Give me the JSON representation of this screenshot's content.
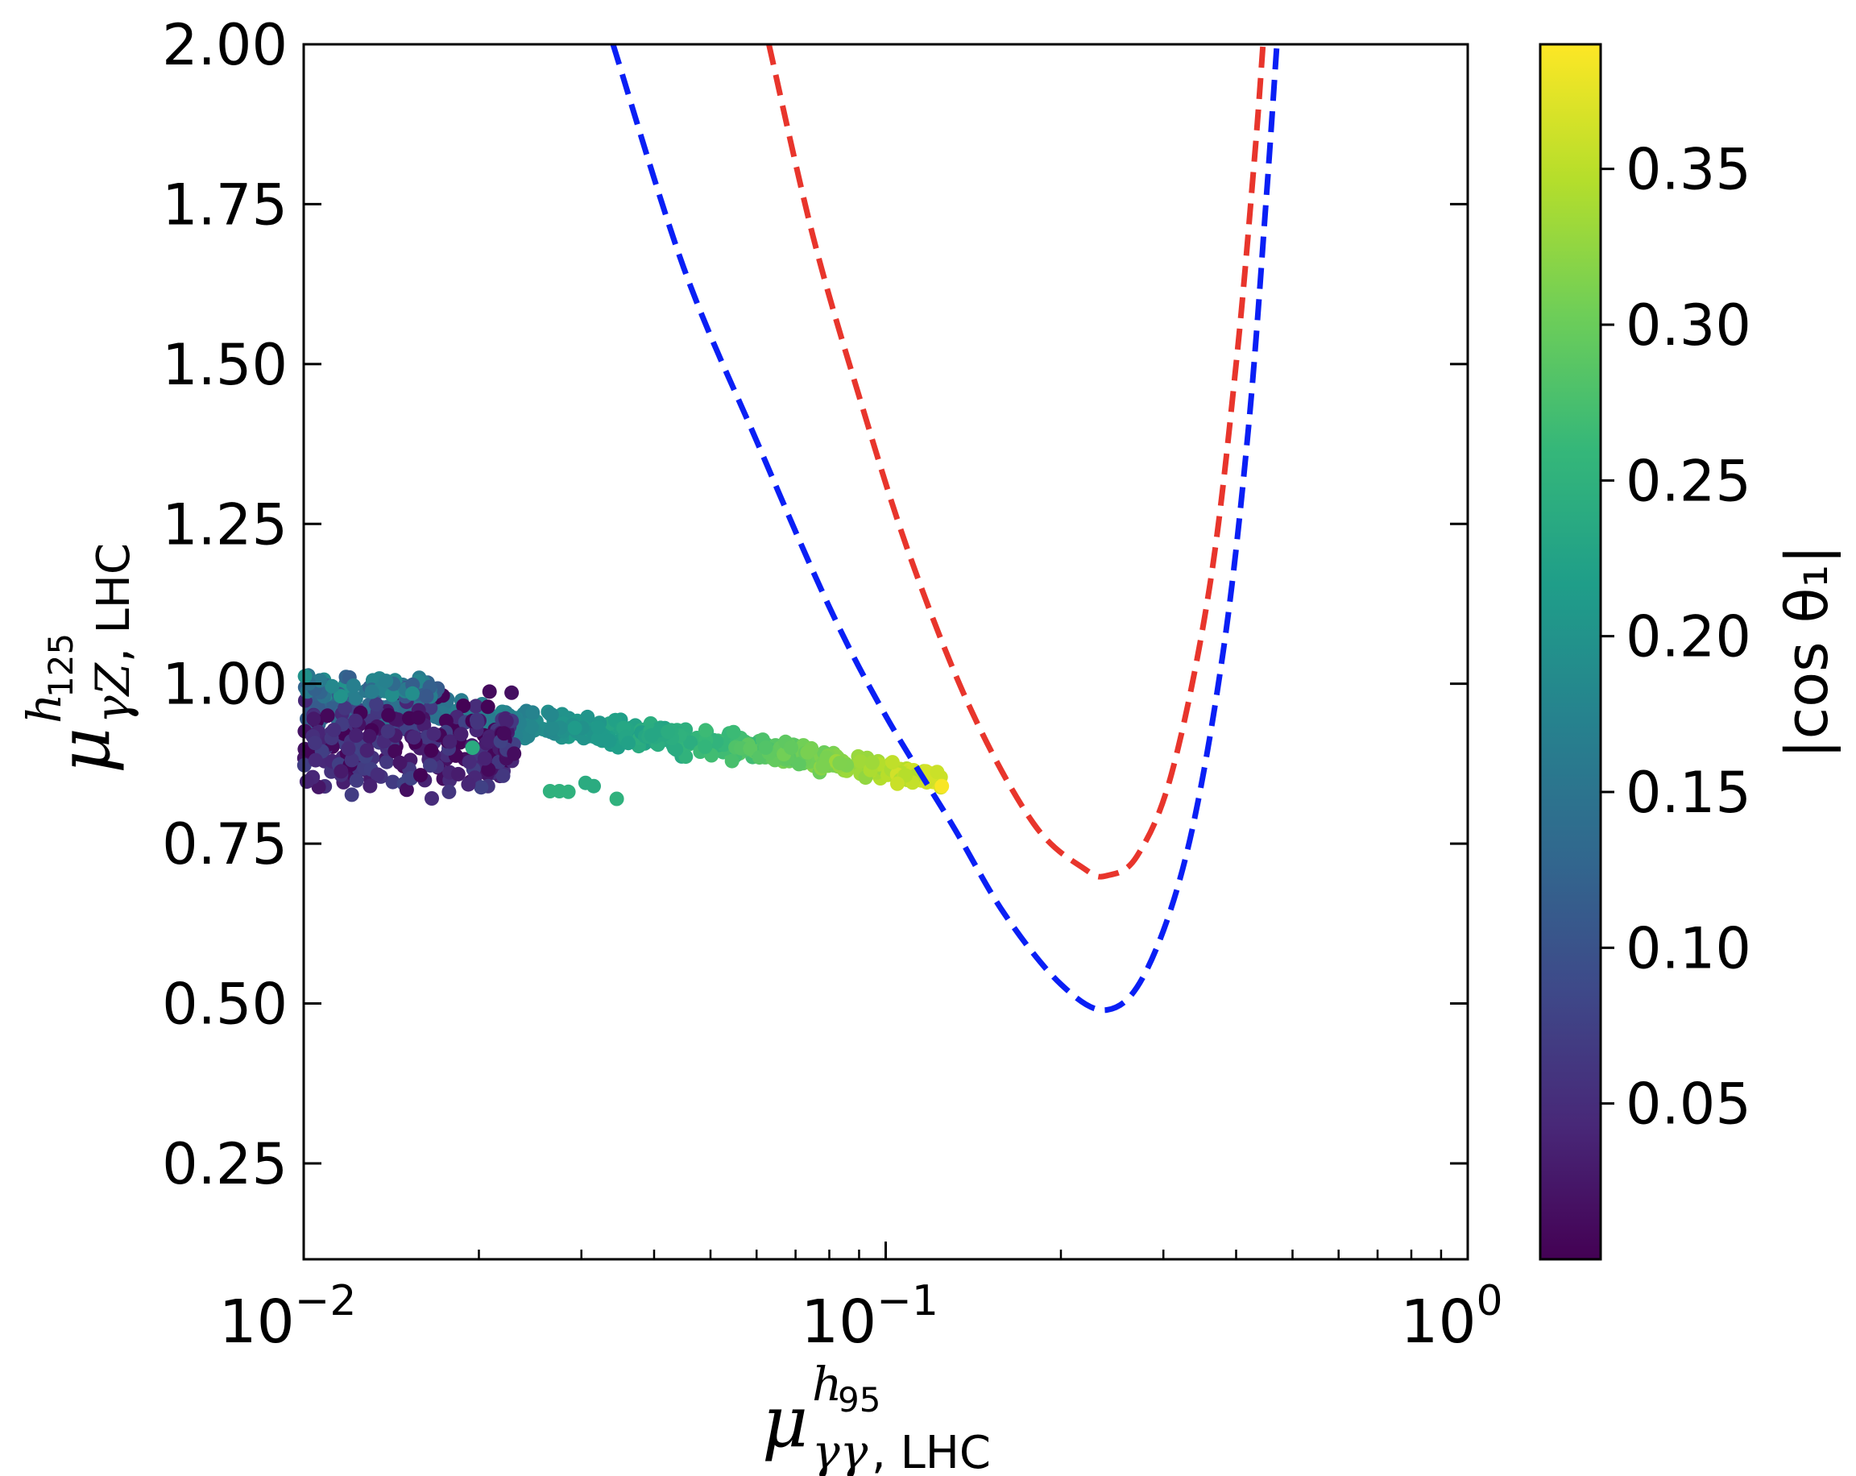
{
  "chart_data": {
    "type": "scatter",
    "x_scale": "log",
    "xlim": [
      0.01,
      1.0
    ],
    "ylim": [
      0.1,
      2.0
    ],
    "x_ticks": [
      {
        "base": "10",
        "exp": "−2",
        "value": 0.01
      },
      {
        "base": "10",
        "exp": "−1",
        "value": 0.1
      },
      {
        "base": "10",
        "exp": "0",
        "value": 1.0
      }
    ],
    "y_ticks": [
      "0.25",
      "0.50",
      "0.75",
      "1.00",
      "1.25",
      "1.50",
      "1.75",
      "2.00"
    ],
    "xlabel": {
      "symbol": "μ",
      "sup": "h",
      "sup_sub": "95",
      "sub_greek": "γγ",
      "sub_text": ", LHC"
    },
    "ylabel": {
      "symbol": "μ",
      "sup": "h",
      "sup_sub": "125",
      "sub_greek": "γZ",
      "sub_text": ", LHC"
    },
    "colorbar": {
      "label": "|cos θ₁|",
      "min": 0.0,
      "max": 0.39,
      "ticks": [
        "0.05",
        "0.10",
        "0.15",
        "0.20",
        "0.25",
        "0.30",
        "0.35"
      ],
      "colors": [
        "#440154",
        "#482878",
        "#3e4989",
        "#31688e",
        "#26828e",
        "#1f9e89",
        "#35b779",
        "#6ece58",
        "#b5de2b",
        "#fde725"
      ]
    },
    "curves": [
      {
        "name": "blue-dashed",
        "color": "#0a1ff5",
        "x": [
          0.034,
          0.045,
          0.06,
          0.08,
          0.1,
          0.13,
          0.16,
          0.2,
          0.24,
          0.28,
          0.33,
          0.38,
          0.42,
          0.45,
          0.47
        ],
        "y": [
          2.0,
          1.65,
          1.38,
          1.12,
          0.95,
          0.78,
          0.64,
          0.53,
          0.49,
          0.55,
          0.74,
          1.05,
          1.4,
          1.75,
          2.0
        ]
      },
      {
        "name": "red-dashed",
        "color": "#e8352c",
        "x": [
          0.063,
          0.075,
          0.09,
          0.11,
          0.14,
          0.18,
          0.22,
          0.24,
          0.27,
          0.31,
          0.36,
          0.4,
          0.43,
          0.445
        ],
        "y": [
          2.0,
          1.7,
          1.45,
          1.2,
          0.96,
          0.78,
          0.71,
          0.7,
          0.73,
          0.86,
          1.15,
          1.5,
          1.82,
          2.0
        ]
      }
    ],
    "scatter_bands": [
      {
        "name": "upper-band",
        "x_range": [
          0.01,
          0.125
        ],
        "y_start": 0.96,
        "y_end": 0.85,
        "y_spread": 0.045,
        "c_start": 0.12,
        "c_end": 0.37,
        "count": 520
      },
      {
        "name": "lower-cluster",
        "x_range": [
          0.01,
          0.023
        ],
        "y_center": 0.905,
        "y_spread": 0.1,
        "c_range": [
          0.0,
          0.08
        ],
        "count": 260
      },
      {
        "name": "top-edge",
        "x_range": [
          0.01,
          0.017
        ],
        "y_center": 0.995,
        "y_spread": 0.03,
        "c_range": [
          0.1,
          0.2
        ],
        "count": 70
      }
    ],
    "isolated_points": [
      {
        "x": 0.0265,
        "y": 0.832,
        "c": 0.25
      },
      {
        "x": 0.0275,
        "y": 0.832,
        "c": 0.25
      },
      {
        "x": 0.0285,
        "y": 0.831,
        "c": 0.25
      },
      {
        "x": 0.0305,
        "y": 0.845,
        "c": 0.24
      },
      {
        "x": 0.0315,
        "y": 0.84,
        "c": 0.24
      },
      {
        "x": 0.0345,
        "y": 0.82,
        "c": 0.25
      },
      {
        "x": 0.0195,
        "y": 0.9,
        "c": 0.24
      }
    ]
  }
}
